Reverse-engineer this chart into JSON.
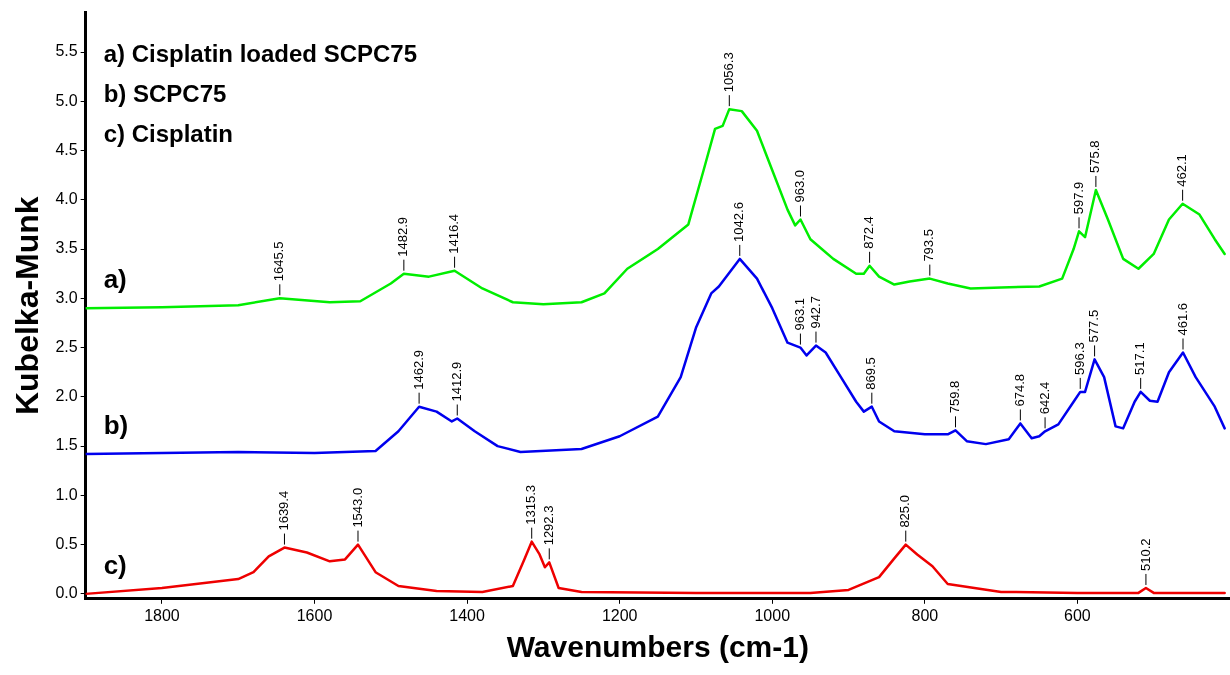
{
  "chart_data": {
    "type": "line",
    "xlabel": "Wavenumbers (cm-1)",
    "ylabel": "Kubelka-Munk",
    "xlim": [
      1900,
      400
    ],
    "xticks": [
      1800,
      1600,
      1400,
      1200,
      1000,
      800,
      600
    ],
    "ylim": [
      -0.05,
      5.9
    ],
    "yticks": [
      {
        "value": 0,
        "label": "0.0"
      },
      {
        "value": 0.5,
        "label": "0.5"
      },
      {
        "value": 1,
        "label": "1.0"
      },
      {
        "value": 1.5,
        "label": "1.5"
      },
      {
        "value": 2,
        "label": "2.0"
      },
      {
        "value": 2.5,
        "label": "2.5"
      },
      {
        "value": 3,
        "label": "3.0"
      },
      {
        "value": 3.5,
        "label": "3.5"
      },
      {
        "value": 4,
        "label": "4.0"
      },
      {
        "value": 4.5,
        "label": "4.5"
      },
      {
        "value": 5,
        "label": "5.0"
      },
      {
        "value": 5.5,
        "label": "5.5"
      }
    ],
    "grid": false,
    "legend": false,
    "marker": "none",
    "line_style": "solid",
    "series": [
      {
        "name": "a)",
        "color": "#00ee00",
        "x": [
          1900,
          1800,
          1700,
          1645.5,
          1580,
          1540,
          1500,
          1482.9,
          1450,
          1416.4,
          1380,
          1340,
          1300,
          1250,
          1220,
          1190,
          1150,
          1110,
          1090,
          1075,
          1065,
          1056.3,
          1040,
          1020,
          1000,
          980,
          970,
          963,
          950,
          920,
          890,
          880,
          872.4,
          860,
          840,
          820,
          793.5,
          770,
          740,
          700,
          650,
          620,
          605,
          597.9,
          590,
          575.8,
          560,
          540,
          520,
          500,
          480,
          462.1,
          440,
          420,
          407
        ],
        "values": [
          2.9,
          2.91,
          2.93,
          3.0,
          2.96,
          2.97,
          3.15,
          3.25,
          3.22,
          3.28,
          3.1,
          2.96,
          2.94,
          2.96,
          3.05,
          3.3,
          3.5,
          3.75,
          4.3,
          4.72,
          4.75,
          4.92,
          4.9,
          4.7,
          4.3,
          3.9,
          3.74,
          3.8,
          3.6,
          3.4,
          3.25,
          3.25,
          3.33,
          3.22,
          3.14,
          3.17,
          3.2,
          3.15,
          3.1,
          3.11,
          3.12,
          3.2,
          3.5,
          3.68,
          3.62,
          4.1,
          3.8,
          3.4,
          3.3,
          3.45,
          3.8,
          3.96,
          3.85,
          3.6,
          3.45
        ]
      },
      {
        "name": "b)",
        "color": "#0000ee",
        "x": [
          1900,
          1700,
          1600,
          1520,
          1490,
          1462.9,
          1440,
          1420,
          1412.9,
          1390,
          1360,
          1330,
          1250,
          1200,
          1150,
          1120,
          1100,
          1080,
          1070,
          1042.6,
          1020,
          1000,
          980,
          963.1,
          955,
          942.7,
          930,
          910,
          890,
          880,
          869.5,
          860,
          840,
          800,
          770,
          759.8,
          745,
          720,
          690,
          674.8,
          660,
          650,
          642.4,
          625,
          605,
          596.3,
          590,
          577.5,
          565,
          550,
          540,
          525,
          517.1,
          505,
          495,
          480,
          461.6,
          445,
          420,
          407
        ],
        "values": [
          1.42,
          1.44,
          1.43,
          1.45,
          1.65,
          1.9,
          1.85,
          1.75,
          1.78,
          1.65,
          1.5,
          1.44,
          1.47,
          1.6,
          1.8,
          2.2,
          2.7,
          3.05,
          3.12,
          3.4,
          3.2,
          2.9,
          2.55,
          2.5,
          2.42,
          2.52,
          2.45,
          2.2,
          1.95,
          1.85,
          1.9,
          1.75,
          1.65,
          1.62,
          1.62,
          1.66,
          1.55,
          1.52,
          1.57,
          1.73,
          1.58,
          1.6,
          1.65,
          1.72,
          1.95,
          2.05,
          2.05,
          2.38,
          2.2,
          1.7,
          1.68,
          1.95,
          2.05,
          1.96,
          1.95,
          2.25,
          2.45,
          2.2,
          1.9,
          1.68
        ]
      },
      {
        "name": "c)",
        "color": "#ee0000",
        "x": [
          1900,
          1800,
          1700,
          1680,
          1660,
          1639.4,
          1610,
          1580,
          1560,
          1543,
          1520,
          1490,
          1440,
          1380,
          1340,
          1325,
          1315.3,
          1305,
          1298,
          1292.3,
          1280,
          1250,
          1100,
          950,
          900,
          860,
          840,
          825,
          810,
          790,
          770,
          700,
          600,
          520,
          510.2,
          500,
          407
        ],
        "values": [
          0.0,
          0.06,
          0.15,
          0.22,
          0.38,
          0.47,
          0.42,
          0.33,
          0.35,
          0.5,
          0.22,
          0.08,
          0.03,
          0.02,
          0.08,
          0.35,
          0.53,
          0.4,
          0.27,
          0.32,
          0.06,
          0.02,
          0.01,
          0.01,
          0.04,
          0.17,
          0.36,
          0.5,
          0.4,
          0.28,
          0.1,
          0.02,
          0.01,
          0.01,
          0.06,
          0.01,
          0.01
        ]
      }
    ],
    "annotations": [
      "a) Cisplatin loaded SCPC75",
      "b) SCPC75",
      "c) Cisplatin",
      {
        "text": "1645.5",
        "x": 1645.5,
        "y": 3.0
      },
      {
        "text": "1482.9",
        "x": 1482.9,
        "y": 3.25
      },
      {
        "text": "1416.4",
        "x": 1416.4,
        "y": 3.28
      },
      {
        "text": "1056.3",
        "x": 1056.3,
        "y": 4.92
      },
      {
        "text": "963.0",
        "x": 963,
        "y": 3.8
      },
      {
        "text": "872.4",
        "x": 872.4,
        "y": 3.33
      },
      {
        "text": "793.5",
        "x": 793.5,
        "y": 3.2
      },
      {
        "text": "597.9",
        "x": 597.9,
        "y": 3.68
      },
      {
        "text": "575.8",
        "x": 575.8,
        "y": 4.1
      },
      {
        "text": "462.1",
        "x": 462.1,
        "y": 3.96
      },
      {
        "text": "1462.9",
        "x": 1462.9,
        "y": 1.9
      },
      {
        "text": "1412.9",
        "x": 1412.9,
        "y": 1.78
      },
      {
        "text": "1042.6",
        "x": 1042.6,
        "y": 3.4
      },
      {
        "text": "963.1",
        "x": 963.1,
        "y": 2.5
      },
      {
        "text": "942.7",
        "x": 942.7,
        "y": 2.52
      },
      {
        "text": "869.5",
        "x": 869.5,
        "y": 1.9
      },
      {
        "text": "759.8",
        "x": 759.8,
        "y": 1.66
      },
      {
        "text": "674.8",
        "x": 674.8,
        "y": 1.73
      },
      {
        "text": "642.4",
        "x": 642.4,
        "y": 1.65
      },
      {
        "text": "596.3",
        "x": 596.3,
        "y": 2.05
      },
      {
        "text": "577.5",
        "x": 577.5,
        "y": 2.38
      },
      {
        "text": "517.1",
        "x": 517.1,
        "y": 2.05
      },
      {
        "text": "461.6",
        "x": 461.6,
        "y": 2.45
      },
      {
        "text": "1639.4",
        "x": 1639.4,
        "y": 0.47
      },
      {
        "text": "1543.0",
        "x": 1543,
        "y": 0.5
      },
      {
        "text": "1315.3",
        "x": 1315.3,
        "y": 0.53
      },
      {
        "text": "1292.3",
        "x": 1292.3,
        "y": 0.32
      },
      {
        "text": "825.0",
        "x": 825,
        "y": 0.5
      },
      {
        "text": "510.2",
        "x": 510.2,
        "y": 0.06
      }
    ]
  }
}
